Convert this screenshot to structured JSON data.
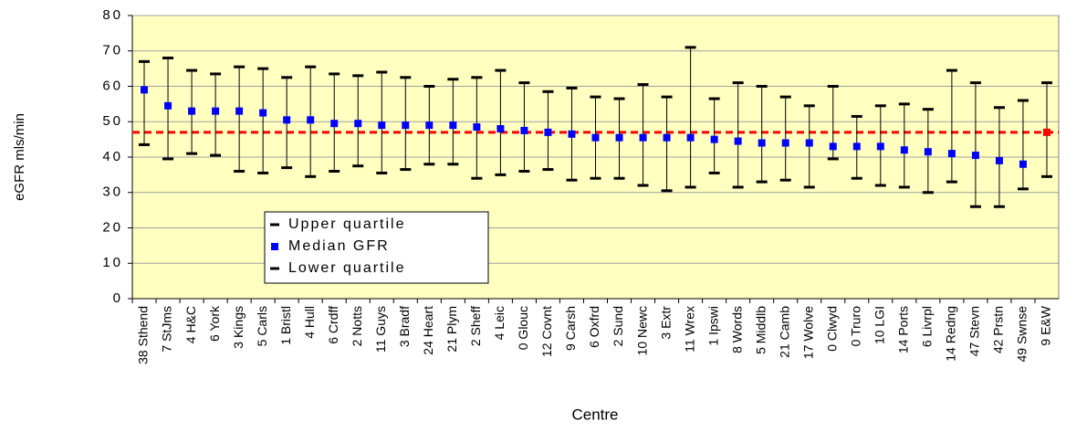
{
  "chart_data": {
    "type": "quartile-range",
    "y_label": "eGFR mls/min",
    "x_label": "Centre",
    "categories": [
      "38 Sthend",
      "7 StJms",
      "4 H&C",
      "6 York",
      "3 Kings",
      "5 Carls",
      "1 Bristl",
      "4 Hull",
      "6 Crdff",
      "2 Notts",
      "11 Guys",
      "3 Bradf",
      "24 Heart",
      "21 Plym",
      "2 Sheff",
      "4 Leic",
      "0 Glouc",
      "12 Covnt",
      "9 Carsh",
      "6 Oxfrd",
      "2 Sund",
      "10 Newc",
      "3 Extr",
      "11 Wrex",
      "1 Ipswi",
      "8 Words",
      "5 Middlb",
      "21 Camb",
      "17 Wolve",
      "0 Clwyd",
      "0 Truro",
      "10 LGI",
      "14 Ports",
      "6 Livrpl",
      "14 Redng",
      "47 Stevn",
      "42 Prstn",
      "49 Swnse",
      "9 E&W"
    ],
    "series": [
      {
        "name": "Upper quartile",
        "color": "#000000",
        "values": [
          67,
          68,
          64.5,
          63.5,
          65.5,
          65,
          62.5,
          65.5,
          63.5,
          63,
          64,
          62.5,
          60,
          62,
          62.5,
          64.5,
          61,
          58.5,
          59.5,
          57,
          56.5,
          60.5,
          57,
          71,
          56.5,
          61,
          60,
          57,
          54.5,
          60,
          51.5,
          54.5,
          55,
          53.5,
          64.5,
          61,
          54,
          56,
          61
        ]
      },
      {
        "name": "Median GFR",
        "color": "#0000ff",
        "colors": [
          "#0000ff",
          "#0000ff",
          "#0000ff",
          "#0000ff",
          "#0000ff",
          "#0000ff",
          "#0000ff",
          "#0000ff",
          "#0000ff",
          "#0000ff",
          "#0000ff",
          "#0000ff",
          "#0000ff",
          "#0000ff",
          "#0000ff",
          "#0000ff",
          "#0000ff",
          "#0000ff",
          "#0000ff",
          "#0000ff",
          "#0000ff",
          "#0000ff",
          "#0000ff",
          "#0000ff",
          "#0000ff",
          "#0000ff",
          "#0000ff",
          "#0000ff",
          "#0000ff",
          "#0000ff",
          "#0000ff",
          "#0000ff",
          "#0000ff",
          "#0000ff",
          "#0000ff",
          "#0000ff",
          "#0000ff",
          "#0000ff",
          "#ff0000"
        ],
        "values": [
          59,
          54.5,
          53,
          53,
          53,
          52.5,
          50.5,
          50.5,
          49.5,
          49.5,
          49,
          49,
          49,
          49,
          48.5,
          48,
          47.5,
          47,
          46.5,
          45.5,
          45.5,
          45.5,
          45.5,
          45.5,
          45,
          44.5,
          44,
          44,
          44,
          43,
          43,
          43,
          42,
          41.5,
          41,
          40.5,
          39,
          38,
          47
        ]
      },
      {
        "name": "Lower quartile",
        "color": "#000000",
        "values": [
          43.5,
          39.5,
          41,
          40.5,
          36,
          35.5,
          37,
          34.5,
          36,
          37.5,
          35.5,
          36.5,
          38,
          38,
          34,
          35,
          36,
          36.5,
          33.5,
          34,
          34,
          32,
          30.5,
          31.5,
          35.5,
          31.5,
          33,
          33.5,
          31.5,
          39.5,
          34,
          32,
          31.5,
          30,
          33,
          26,
          26,
          31,
          34.5
        ]
      }
    ],
    "reference_line": {
      "value": 47,
      "color": "#ff0000"
    },
    "ylim": [
      0,
      80
    ],
    "yticks": [
      0,
      10,
      20,
      30,
      40,
      50,
      60,
      70,
      80
    ],
    "grid": true,
    "background": "#ffffc0"
  }
}
